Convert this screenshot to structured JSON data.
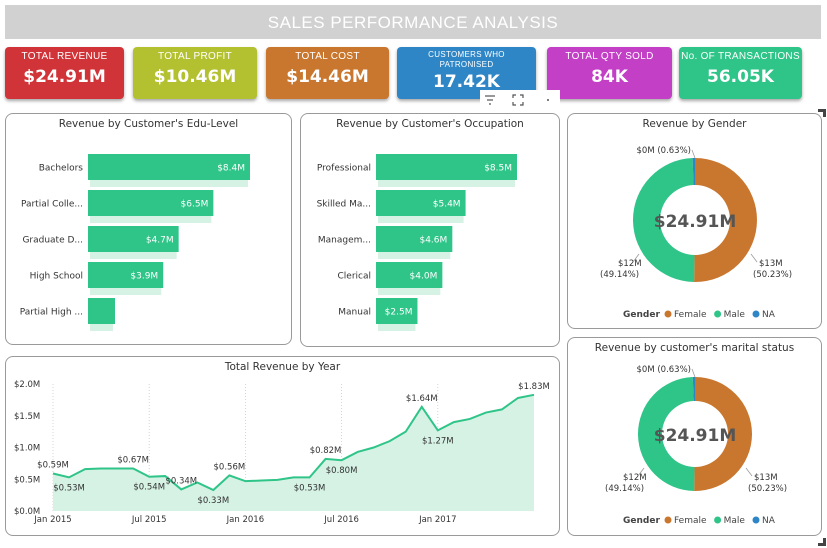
{
  "header": {
    "title": "SALES PERFORMANCE ANALYSIS"
  },
  "kpis": [
    {
      "label": "TOTAL REVENUE",
      "value": "$24.91M",
      "color": "#d13438"
    },
    {
      "label": "TOTAL PROFIT",
      "value": "$10.46M",
      "color": "#b3c130"
    },
    {
      "label": "TOTAL COST",
      "value": "$14.46M",
      "color": "#c9772e"
    },
    {
      "label": "CUSTOMERS WHO PATRONISED",
      "value": "17.42K",
      "color": "#2f86c6"
    },
    {
      "label": "TOTAL QTY SOLD",
      "value": "84K",
      "color": "#c23fc6"
    },
    {
      "label": "No. OF TRANSACTIONS",
      "value": "56.05K",
      "color": "#2fc488"
    }
  ],
  "toolbar": {
    "filter_icon": "filter-icon",
    "focus_icon": "focus-mode-icon",
    "more_icon": "more-options-icon"
  },
  "colors": {
    "accent": "#2fc488",
    "female": "#c9772e",
    "male": "#2fc488",
    "na": "#2f86c6",
    "area_fill": "#d6f2e5"
  },
  "chart_data": [
    {
      "id": "edu",
      "type": "bar",
      "title": "Revenue by Customer's Edu-Level",
      "categories": [
        "Bachelors",
        "Partial Colle...",
        "Graduate D...",
        "High School",
        "Partial High ..."
      ],
      "values": [
        8.4,
        6.5,
        4.7,
        3.9,
        1.4
      ],
      "data_labels": [
        "$8.4M",
        "$6.5M",
        "$4.7M",
        "$3.9M",
        ""
      ]
    },
    {
      "id": "occ",
      "type": "bar",
      "title": "Revenue by Customer's Occupation",
      "categories": [
        "Professional",
        "Skilled Ma...",
        "Managem...",
        "Clerical",
        "Manual"
      ],
      "values": [
        8.5,
        5.4,
        4.6,
        4.0,
        2.5
      ],
      "data_labels": [
        "$8.5M",
        "$5.4M",
        "$4.6M",
        "$4.0M",
        "$2.5M"
      ]
    },
    {
      "id": "gender",
      "type": "pie",
      "title": "Revenue by Gender",
      "center_label": "$24.91M",
      "slices": [
        {
          "name": "Female",
          "value": 50.23,
          "label1": "$13M",
          "label2": "(50.23%)"
        },
        {
          "name": "Male",
          "value": 49.14,
          "label1": "$12M",
          "label2": "(49.14%)"
        },
        {
          "name": "NA",
          "value": 0.63,
          "label1": "$0M (0.63%)",
          "label2": ""
        }
      ],
      "legend_title": "Gender",
      "legend": [
        "Female",
        "Male",
        "NA"
      ],
      "legend_position": "bottom"
    },
    {
      "id": "marital",
      "type": "pie",
      "title": "Revenue by customer's marital status",
      "center_label": "$24.91M",
      "slices": [
        {
          "name": "Female",
          "value": 50.23,
          "label1": "$13M",
          "label2": "(50.23%)"
        },
        {
          "name": "Male",
          "value": 49.14,
          "label1": "$12M",
          "label2": "(49.14%)"
        },
        {
          "name": "NA",
          "value": 0.63,
          "label1": "$0M (0.63%)",
          "label2": ""
        }
      ],
      "legend_title": "Gender",
      "legend": [
        "Female",
        "Male",
        "NA"
      ],
      "legend_position": "bottom"
    },
    {
      "id": "year",
      "type": "area",
      "title": "Total Revenue by Year",
      "x_ticks": [
        "Jan 2015",
        "Jul 2015",
        "Jan 2016",
        "Jul 2016",
        "Jan 2017"
      ],
      "y_ticks": [
        "$0.0M",
        "$0.5M",
        "$1.0M",
        "$1.5M",
        "$2.0M"
      ],
      "ylim": [
        0,
        2.0
      ],
      "values": [
        0.59,
        0.53,
        0.66,
        0.67,
        0.67,
        0.67,
        0.54,
        0.55,
        0.34,
        0.45,
        0.33,
        0.56,
        0.47,
        0.48,
        0.49,
        0.53,
        0.53,
        0.82,
        0.8,
        0.93,
        1.0,
        1.1,
        1.25,
        1.64,
        1.27,
        1.4,
        1.45,
        1.55,
        1.6,
        1.78,
        1.83
      ],
      "point_labels": [
        {
          "i": 0,
          "text": "$0.59M",
          "pos": "above"
        },
        {
          "i": 1,
          "text": "$0.53M",
          "pos": "below"
        },
        {
          "i": 5,
          "text": "$0.67M",
          "pos": "above"
        },
        {
          "i": 6,
          "text": "$0.54M",
          "pos": "below"
        },
        {
          "i": 8,
          "text": "$0.34M",
          "pos": "above"
        },
        {
          "i": 10,
          "text": "$0.33M",
          "pos": "below"
        },
        {
          "i": 11,
          "text": "$0.56M",
          "pos": "above"
        },
        {
          "i": 16,
          "text": "$0.53M",
          "pos": "below"
        },
        {
          "i": 17,
          "text": "$0.82M",
          "pos": "above"
        },
        {
          "i": 18,
          "text": "$0.80M",
          "pos": "below"
        },
        {
          "i": 23,
          "text": "$1.64M",
          "pos": "above"
        },
        {
          "i": 24,
          "text": "$1.27M",
          "pos": "below"
        },
        {
          "i": 30,
          "text": "$1.83M",
          "pos": "above"
        }
      ]
    }
  ]
}
